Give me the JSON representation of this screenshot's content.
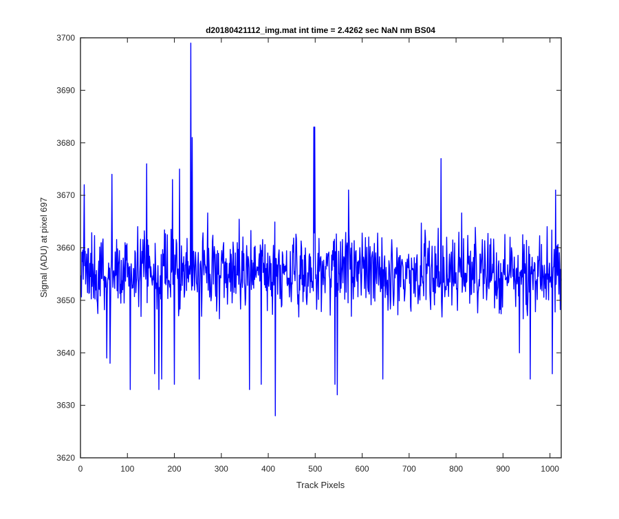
{
  "chart_data": {
    "type": "line",
    "title": "d20180421112_img.mat int time = 2.4262 sec  NaN nm BS04",
    "xlabel": "Track Pixels",
    "ylabel": "Signal (ADU) at pixel 697",
    "xlim": [
      0,
      1024
    ],
    "ylim": [
      3620,
      3700
    ],
    "xticks": [
      0,
      100,
      200,
      300,
      400,
      500,
      600,
      700,
      800,
      900,
      1000
    ],
    "yticks": [
      3620,
      3630,
      3640,
      3650,
      3660,
      3670,
      3680,
      3690,
      3700
    ],
    "grid": false,
    "legend": "none",
    "series": [
      {
        "color": "#0000ff",
        "x_start": 1,
        "x_step": 1,
        "n_points": 1024,
        "baseline_mean": 3655,
        "noise_spread": 6,
        "notable_points": [
          {
            "x": 8,
            "y": 3672
          },
          {
            "x": 56,
            "y": 3639
          },
          {
            "x": 63,
            "y": 3638
          },
          {
            "x": 67,
            "y": 3674
          },
          {
            "x": 106,
            "y": 3633
          },
          {
            "x": 141,
            "y": 3676
          },
          {
            "x": 158,
            "y": 3636
          },
          {
            "x": 167,
            "y": 3633
          },
          {
            "x": 173,
            "y": 3635
          },
          {
            "x": 196,
            "y": 3673
          },
          {
            "x": 200,
            "y": 3634
          },
          {
            "x": 211,
            "y": 3675
          },
          {
            "x": 235,
            "y": 3699
          },
          {
            "x": 238,
            "y": 3681
          },
          {
            "x": 253,
            "y": 3635
          },
          {
            "x": 360,
            "y": 3633
          },
          {
            "x": 385,
            "y": 3634
          },
          {
            "x": 415,
            "y": 3628
          },
          {
            "x": 497,
            "y": 3683
          },
          {
            "x": 499,
            "y": 3683
          },
          {
            "x": 542,
            "y": 3634
          },
          {
            "x": 547,
            "y": 3632
          },
          {
            "x": 571,
            "y": 3671
          },
          {
            "x": 644,
            "y": 3635
          },
          {
            "x": 768,
            "y": 3677
          },
          {
            "x": 935,
            "y": 3640
          },
          {
            "x": 958,
            "y": 3635
          },
          {
            "x": 1005,
            "y": 3636
          },
          {
            "x": 1012,
            "y": 3671
          }
        ]
      }
    ]
  }
}
